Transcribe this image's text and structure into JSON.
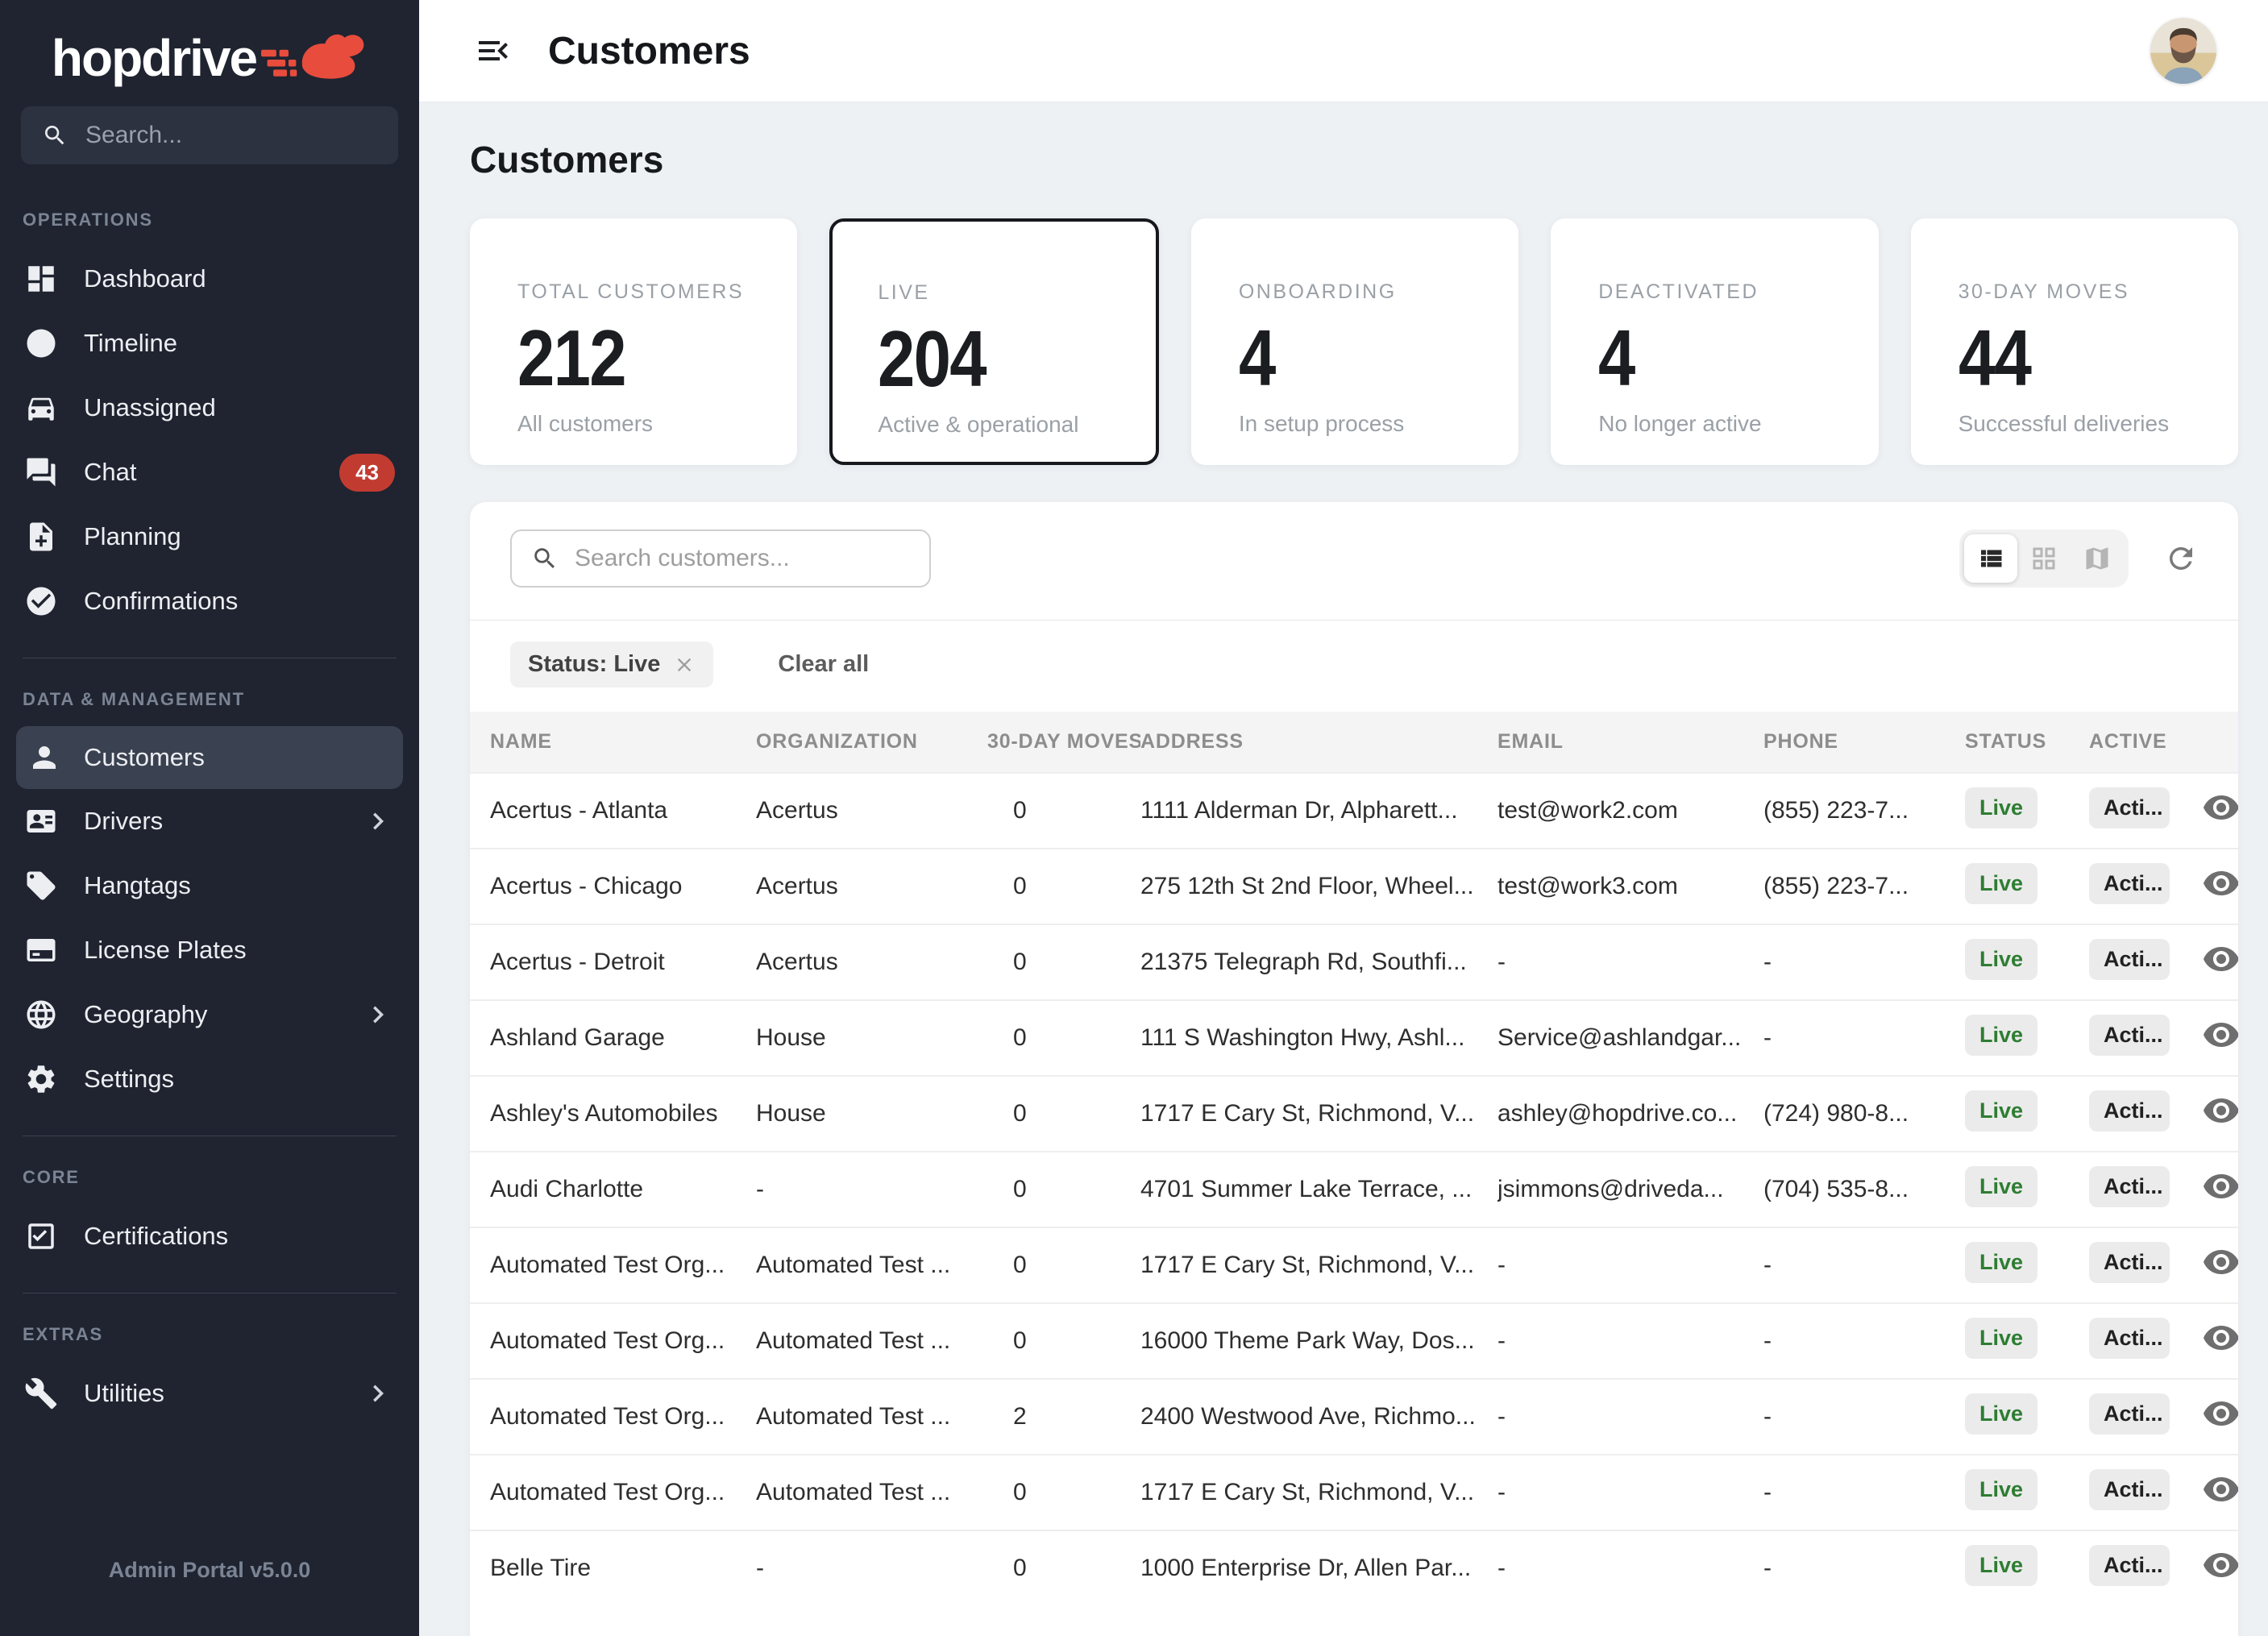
{
  "colors": {
    "brand_red": "#e84c3d",
    "sidebar_bg": "#1f2430",
    "live_green": "#2e7d32",
    "notification_red": "#c23b31",
    "page_bg": "#eef1f4"
  },
  "sidebar": {
    "logo": "hopdrive",
    "search_placeholder": "Search...",
    "sections": [
      {
        "label": "OPERATIONS",
        "items": [
          {
            "label": "Dashboard",
            "icon": "dashboard"
          },
          {
            "label": "Timeline",
            "icon": "clock"
          },
          {
            "label": "Unassigned",
            "icon": "car"
          },
          {
            "label": "Chat",
            "icon": "chat",
            "badge": "43"
          },
          {
            "label": "Planning",
            "icon": "note-add"
          },
          {
            "label": "Confirmations",
            "icon": "check-circle"
          }
        ]
      },
      {
        "label": "DATA & MANAGEMENT",
        "items": [
          {
            "label": "Customers",
            "icon": "person",
            "active": true
          },
          {
            "label": "Drivers",
            "icon": "id-card",
            "expandable": true
          },
          {
            "label": "Hangtags",
            "icon": "tag"
          },
          {
            "label": "License Plates",
            "icon": "license-plate"
          },
          {
            "label": "Geography",
            "icon": "globe",
            "expandable": true
          },
          {
            "label": "Settings",
            "icon": "gear"
          }
        ]
      },
      {
        "label": "CORE",
        "items": [
          {
            "label": "Certifications",
            "icon": "checkbox"
          }
        ]
      },
      {
        "label": "EXTRAS",
        "items": [
          {
            "label": "Utilities",
            "icon": "wrench",
            "expandable": true
          }
        ]
      }
    ],
    "footer": "Admin Portal v5.0.0"
  },
  "header": {
    "title": "Customers"
  },
  "page": {
    "heading": "Customers",
    "stat_cards": [
      {
        "label": "TOTAL CUSTOMERS",
        "value": "212",
        "sub": "All customers",
        "selected": false
      },
      {
        "label": "LIVE",
        "value": "204",
        "sub": "Active & operational",
        "selected": true
      },
      {
        "label": "ONBOARDING",
        "value": "4",
        "sub": "In setup process",
        "selected": false
      },
      {
        "label": "DEACTIVATED",
        "value": "4",
        "sub": "No longer active",
        "selected": false
      },
      {
        "label": "30-DAY MOVES",
        "value": "44",
        "sub": "Successful deliveries",
        "selected": false
      }
    ]
  },
  "toolbar": {
    "search_placeholder": "Search customers...",
    "views": [
      {
        "icon": "view-list",
        "active": true
      },
      {
        "icon": "grid-view",
        "active": false
      },
      {
        "icon": "map",
        "active": false
      }
    ],
    "filter_chip": "Status: Live",
    "clear_all": "Clear all"
  },
  "table": {
    "columns": [
      "NAME",
      "ORGANIZATION",
      "30-DAY MOVES",
      "ADDRESS",
      "EMAIL",
      "PHONE",
      "STATUS",
      "ACTIVE"
    ],
    "rows": [
      {
        "name": "Acertus - Atlanta",
        "organization": "Acertus",
        "moves": 0,
        "address": "1111 Alderman Dr, Alpharett...",
        "email": "test@work2.com",
        "phone": "(855) 223-7...",
        "status": "Live",
        "active": "Acti..."
      },
      {
        "name": "Acertus - Chicago",
        "organization": "Acertus",
        "moves": 0,
        "address": "275 12th St 2nd Floor, Wheel...",
        "email": "test@work3.com",
        "phone": "(855) 223-7...",
        "status": "Live",
        "active": "Acti..."
      },
      {
        "name": "Acertus - Detroit",
        "organization": "Acertus",
        "moves": 0,
        "address": "21375 Telegraph Rd, Southfi...",
        "email": "-",
        "phone": "-",
        "status": "Live",
        "active": "Acti..."
      },
      {
        "name": "Ashland Garage",
        "organization": "House",
        "moves": 0,
        "address": "111 S Washington Hwy, Ashl...",
        "email": "Service@ashlandgar...",
        "phone": "-",
        "status": "Live",
        "active": "Acti..."
      },
      {
        "name": "Ashley's Automobiles",
        "organization": "House",
        "moves": 0,
        "address": "1717 E Cary St, Richmond, V...",
        "email": "ashley@hopdrive.co...",
        "phone": "(724) 980-8...",
        "status": "Live",
        "active": "Acti..."
      },
      {
        "name": "Audi Charlotte",
        "organization": "-",
        "moves": 0,
        "address": "4701 Summer Lake Terrace, ...",
        "email": "jsimmons@driveda...",
        "phone": "(704) 535-8...",
        "status": "Live",
        "active": "Acti..."
      },
      {
        "name": "Automated Test Org...",
        "organization": "Automated Test ...",
        "moves": 0,
        "address": "1717 E Cary St, Richmond, V...",
        "email": "-",
        "phone": "-",
        "status": "Live",
        "active": "Acti..."
      },
      {
        "name": "Automated Test Org...",
        "organization": "Automated Test ...",
        "moves": 0,
        "address": "16000 Theme Park Way, Dos...",
        "email": "-",
        "phone": "-",
        "status": "Live",
        "active": "Acti..."
      },
      {
        "name": "Automated Test Org...",
        "organization": "Automated Test ...",
        "moves": 2,
        "address": "2400 Westwood Ave, Richmo...",
        "email": "-",
        "phone": "-",
        "status": "Live",
        "active": "Acti..."
      },
      {
        "name": "Automated Test Org...",
        "organization": "Automated Test ...",
        "moves": 0,
        "address": "1717 E Cary St, Richmond, V...",
        "email": "-",
        "phone": "-",
        "status": "Live",
        "active": "Acti..."
      },
      {
        "name": "Belle Tire",
        "organization": "-",
        "moves": 0,
        "address": "1000 Enterprise Dr, Allen Par...",
        "email": "-",
        "phone": "-",
        "status": "Live",
        "active": "Acti..."
      }
    ]
  }
}
